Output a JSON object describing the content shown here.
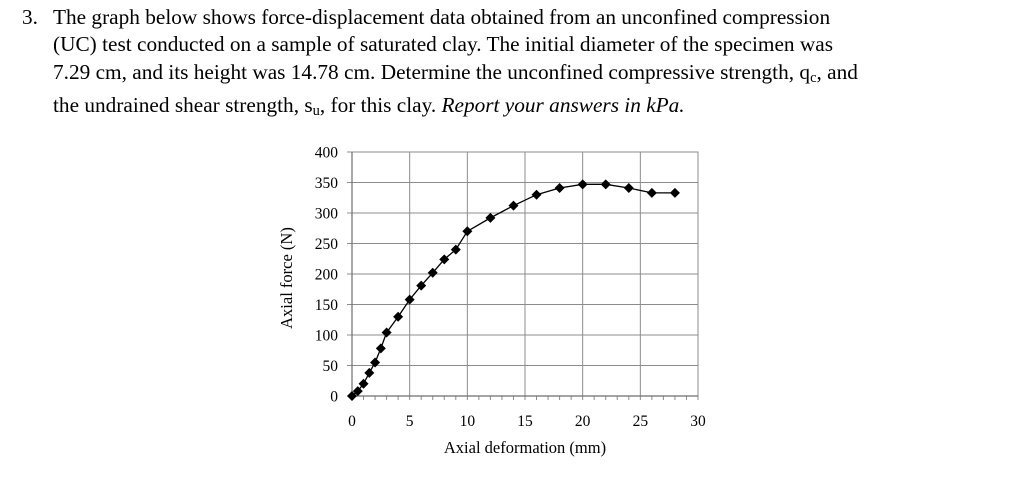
{
  "problem": {
    "number": "3.",
    "lines": [
      "The graph below shows force-displacement data obtained from an unconfined compression",
      "(UC) test conducted on a sample of saturated clay.  The initial diameter of the specimen was",
      "7.29 cm, and its height was 14.78 cm.  Determine the unconfined compressive strength, q",
      "the undrained shear strength, s",
      "Report your answers in kPa."
    ],
    "qc_sub": "c",
    "qc_after": ", and",
    "su_sub": "u",
    "su_after": ", for this clay.  "
  },
  "chart_data": {
    "type": "scatter",
    "title": "",
    "xlabel": "Axial deformation (mm)",
    "ylabel": "Axial force (N)",
    "xlim": [
      0,
      30
    ],
    "ylim": [
      0,
      400
    ],
    "xticks": [
      0,
      5,
      10,
      15,
      20,
      25,
      30
    ],
    "yticks": [
      0,
      50,
      100,
      150,
      200,
      250,
      300,
      350,
      400
    ],
    "grid": true,
    "marker": "diamond",
    "connected": true,
    "color": "#000000",
    "gridColor": "#8c8c8c",
    "x": [
      0,
      0.5,
      1.0,
      1.5,
      2.0,
      2.5,
      3.0,
      4.0,
      5.0,
      6.0,
      7.0,
      8.0,
      9.0,
      10.0,
      12.0,
      14.0,
      16.0,
      18.0,
      20.0,
      22.0,
      24.0,
      26.0,
      28.0
    ],
    "y": [
      0,
      8,
      20,
      38,
      55,
      78,
      104,
      130,
      158,
      181,
      202,
      224,
      240,
      270,
      292,
      312,
      330,
      341,
      347,
      347,
      341,
      333,
      333
    ]
  }
}
